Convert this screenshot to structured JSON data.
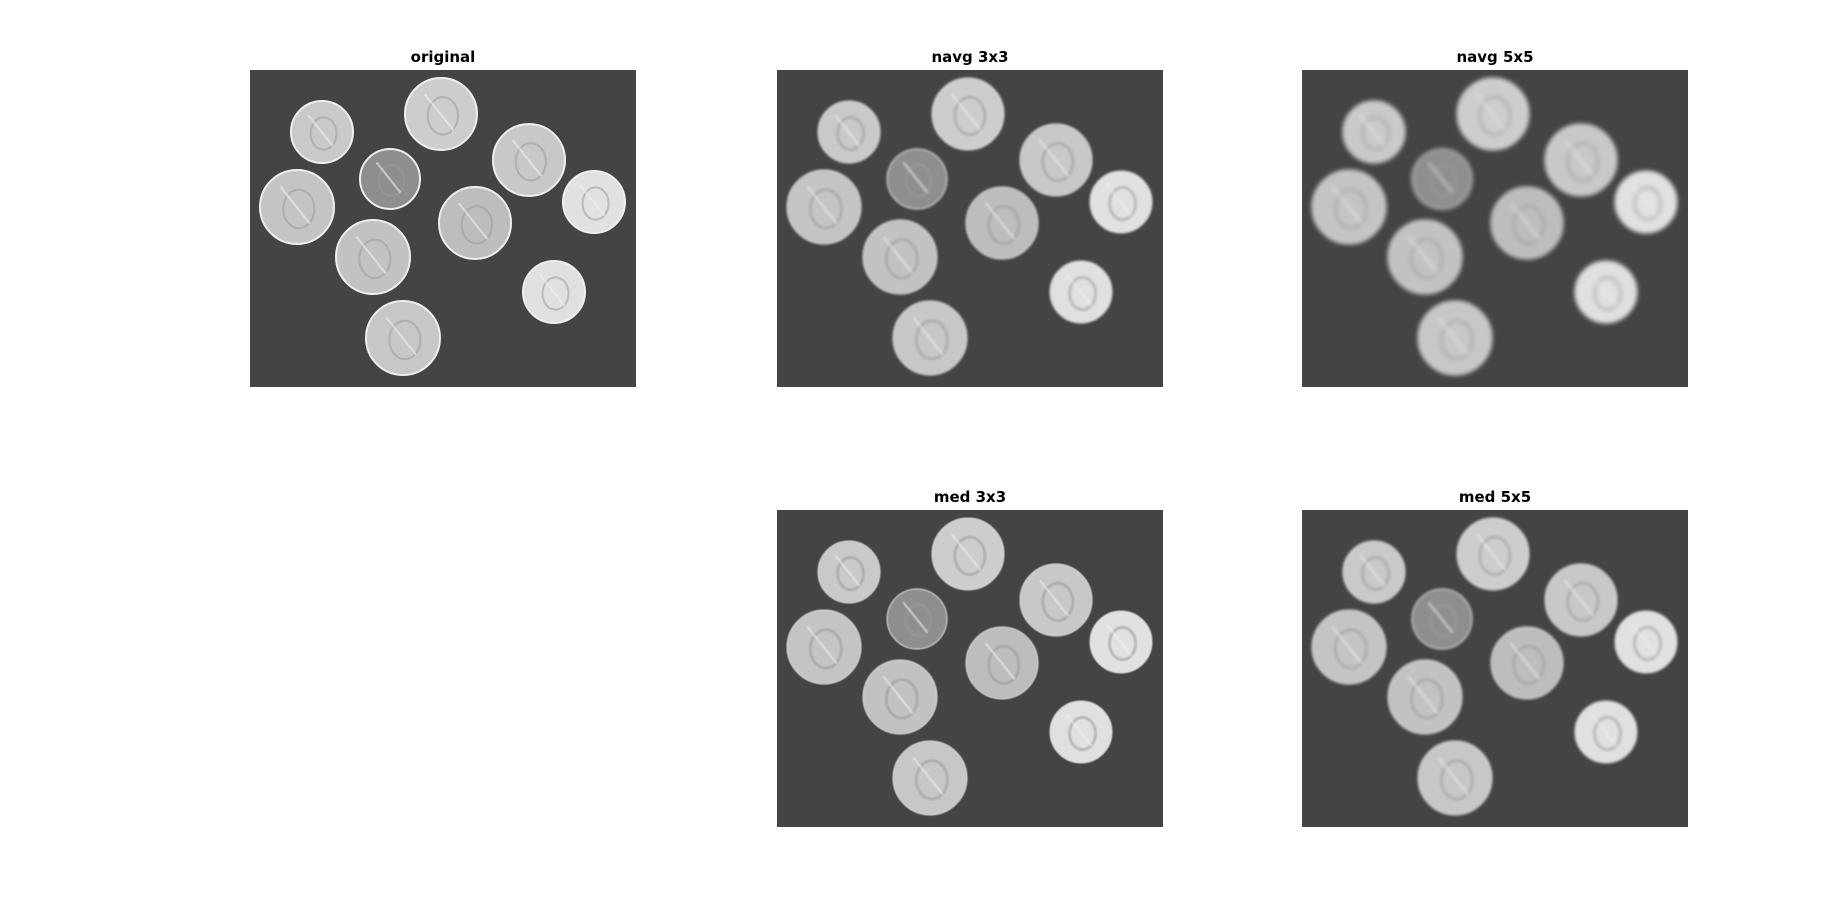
{
  "figure": {
    "panels": [
      {
        "id": "original",
        "title": "original",
        "blur": 0,
        "tone": "sharp"
      },
      {
        "id": "navg3",
        "title": "navg 3x3",
        "blur": 1,
        "tone": "light-blur"
      },
      {
        "id": "navg5",
        "title": "navg 5x5",
        "blur": 2,
        "tone": "heavy-blur"
      },
      {
        "id": "med3",
        "title": "med 3x3",
        "blur": 0.6,
        "tone": "median"
      },
      {
        "id": "med5",
        "title": "med 5x5",
        "blur": 1.2,
        "tone": "median"
      }
    ],
    "colors": {
      "background": "#444444",
      "coin": "#cfcfcf",
      "coin_dark": "#8a8a8a",
      "coin_edge": "#eeeeee"
    }
  }
}
